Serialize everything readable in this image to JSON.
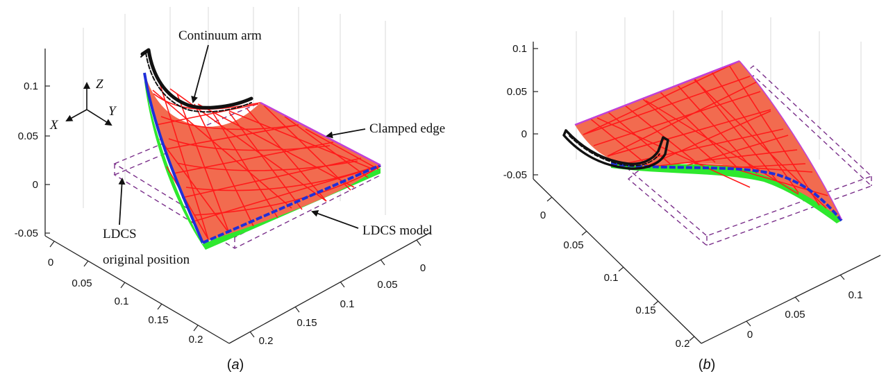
{
  "panels": [
    {
      "caption_letter": "a",
      "z_ticks": [
        "0.1",
        "0.05",
        "0",
        "-0.05"
      ],
      "x_ticks": [
        "0",
        "0.05",
        "0.1",
        "0.15",
        "0.2"
      ],
      "y_ticks": [
        "0",
        "0.05",
        "0.1",
        "0.15",
        "0.2"
      ],
      "axis_letters": {
        "z": "Z",
        "x": "X",
        "y": "Y"
      },
      "annotations": {
        "continuum_arm": "Continuum arm",
        "clamped_edge": "Clamped edge",
        "ldcs_model": "LDCS model",
        "ldcs_original_line1": "LDCS",
        "ldcs_original_line2": "original position"
      }
    },
    {
      "caption_letter": "b",
      "z_ticks": [
        "0.1",
        "0.05",
        "0",
        "-0.05"
      ],
      "x_ticks": [
        "0",
        "0.05",
        "0.1",
        "0.15",
        "0.2"
      ],
      "y_ticks": [
        "0",
        "0.05",
        "0.1"
      ]
    }
  ],
  "colors": {
    "mesh_lines": "#ff1a1a",
    "mesh_fill": "#f26b4f",
    "mesh_edge": "#1f2fd8",
    "under_surface": "#2ee82e",
    "clamped_edge": "#c040d8",
    "arm": "#111111",
    "dashed_frame": "#7a2f8a"
  },
  "icons": {
    "arrow": "arrow-icon",
    "coordinate_triad": "coordinate-triad-icon"
  }
}
